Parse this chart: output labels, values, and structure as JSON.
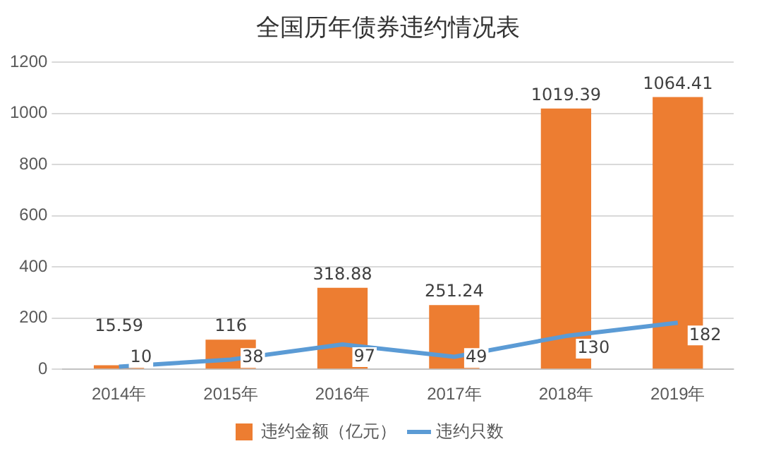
{
  "chart_data": {
    "type": "bar",
    "title": "全国历年债券违约情况表",
    "categories": [
      "2014年",
      "2015年",
      "2016年",
      "2017年",
      "2018年",
      "2019年"
    ],
    "series": [
      {
        "name": "违约金额（亿元）",
        "color": "#ed7d31",
        "values": [
          15.59,
          116,
          318.88,
          251.24,
          1019.39,
          1064.41
        ]
      },
      {
        "name": "违约只数",
        "type": "line",
        "color": "#5b9bd5",
        "values": [
          10,
          38,
          97,
          49,
          130,
          182
        ]
      }
    ],
    "ylim": [
      0,
      1200
    ],
    "yticks": [
      0,
      200,
      400,
      600,
      800,
      1000,
      1200
    ],
    "grid": "y",
    "legend": "bottom",
    "data_labels": true,
    "marker": "none",
    "line_style": "solid"
  }
}
